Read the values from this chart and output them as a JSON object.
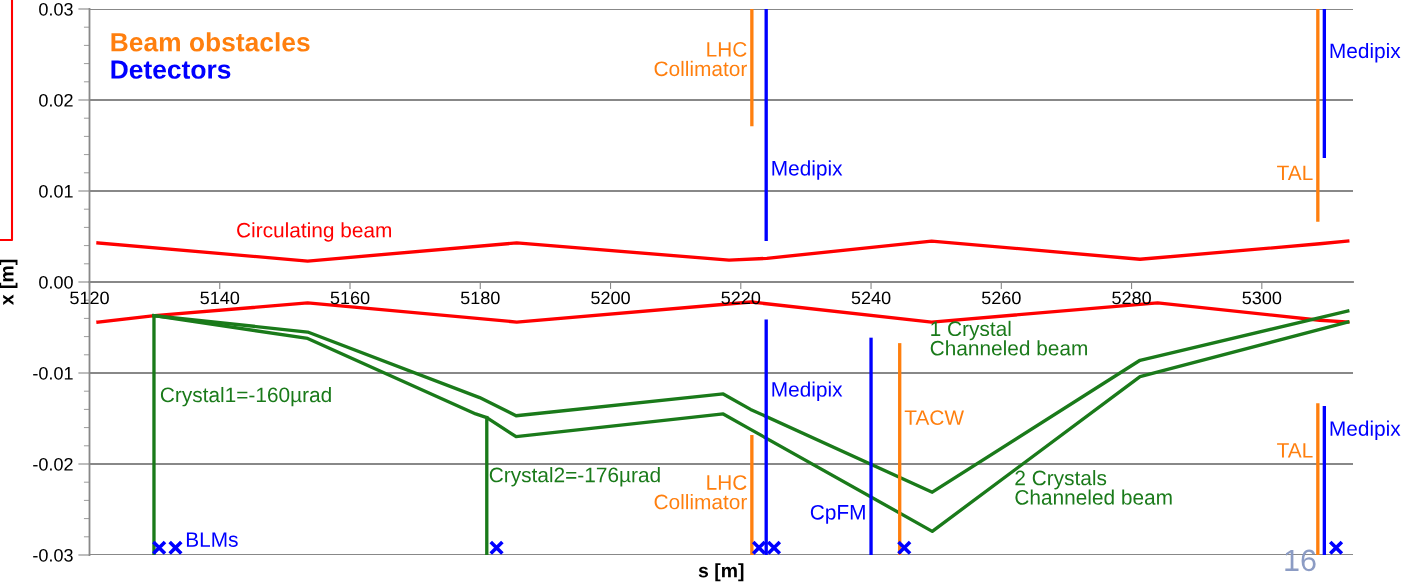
{
  "chart_data": {
    "type": "line",
    "xlabel": "s [m]",
    "ylabel": "x [m]",
    "xlim": [
      5120,
      5314
    ],
    "xticks": [
      5120,
      5140,
      5160,
      5180,
      5200,
      5220,
      5240,
      5260,
      5280,
      5300
    ],
    "ylim": [
      -0.03,
      0.03
    ],
    "yticks": [
      {
        "value": 0.03,
        "label": "0.03"
      },
      {
        "value": 0.02,
        "label": "0.02"
      },
      {
        "value": 0.01,
        "label": "0.01"
      },
      {
        "value": 0,
        "label": "0.00"
      },
      {
        "value": -0.01,
        "label": "-0.01"
      },
      {
        "value": -0.02,
        "label": "-0.02"
      },
      {
        "value": -0.03,
        "label": "-0.03"
      }
    ],
    "grid": "y",
    "line_style": "solid",
    "series": [
      {
        "name": "Circulating beam",
        "color": "#ff0000",
        "x": [
          5121.3,
          5153.5,
          5185.6,
          5218.2,
          5224,
          5249.3,
          5281.3,
          5308.9,
          5313.2
        ],
        "values": [
          0.0043,
          0.0023,
          0.0043,
          0.0024,
          0.0026,
          0.0045,
          0.0025,
          0.0042,
          0.0045
        ]
      },
      {
        "color": "#ff0000",
        "x": [
          5121.3,
          5130,
          5153.5,
          5185.6,
          5221.6,
          5249.3,
          5284,
          5308.9,
          5313.2
        ],
        "values": [
          -0.0044,
          -0.0037,
          -0.0023,
          -0.0044,
          -0.0022,
          -0.0044,
          -0.0023,
          -0.0042,
          -0.0044
        ]
      },
      {
        "name": "1 Crystal\nChanneled beam",
        "color": "#1a7a1a",
        "x": [
          5129.9,
          5153.5,
          5179.9,
          5185.5,
          5217.3,
          5221.5,
          5249.4,
          5281.3,
          5313.2
        ],
        "values": [
          -0.0037,
          -0.0055,
          -0.0127,
          -0.0147,
          -0.0123,
          -0.014,
          -0.0231,
          -0.0086,
          -0.0032
        ]
      },
      {
        "name": "2 Crystals\nChanneled beam",
        "color": "#1a7a1a",
        "x": [
          5129.9,
          5153.5,
          5179.3,
          5181,
          5185.5,
          5217.3,
          5221.5,
          5249.4,
          5281.3,
          5313.2
        ],
        "values": [
          -0.0037,
          -0.0062,
          -0.0145,
          -0.0149,
          -0.017,
          -0.0145,
          -0.0162,
          -0.0274,
          -0.0104,
          -0.0044
        ]
      },
      {
        "name": "Crystal1=-160µrad",
        "color": "#1a7a1a",
        "x": [
          5129.9,
          5129.9
        ],
        "values": [
          -0.0037,
          -0.03
        ]
      },
      {
        "name": "Crystal2=-176µrad",
        "color": "#1a7a1a",
        "x": [
          5181,
          5181
        ],
        "values": [
          -0.0149,
          -0.03
        ]
      },
      {
        "name": "LHC\nCollimator",
        "color": "#ff7f0e",
        "x": [
          5221.7,
          5221.7
        ],
        "values": [
          0.03,
          0.0173
        ]
      },
      {
        "name": "TAL",
        "color": "#ff7f0e",
        "x": [
          5308.6,
          5308.6
        ],
        "values": [
          0.03,
          0.0068
        ]
      },
      {
        "name": "LHC\nCollimator",
        "color": "#ff7f0e",
        "x": [
          5221.7,
          5221.7
        ],
        "values": [
          -0.017,
          -0.03
        ]
      },
      {
        "name": "TACW",
        "color": "#ff7f0e",
        "x": [
          5244.4,
          5244.4
        ],
        "values": [
          -0.0069,
          -0.03
        ]
      },
      {
        "name": "TAL",
        "color": "#ff7f0e",
        "x": [
          5308.6,
          5308.6
        ],
        "values": [
          -0.0135,
          -0.03
        ]
      },
      {
        "name": "Medipix",
        "color": "#0000ff",
        "x": [
          5223.9,
          5223.9
        ],
        "values": [
          0.03,
          0.0047
        ]
      },
      {
        "name": "Medipix",
        "color": "#0000ff",
        "x": [
          5309.6,
          5309.6
        ],
        "values": [
          0.03,
          0.0138
        ]
      },
      {
        "name": "Medipix",
        "color": "#0000ff",
        "x": [
          5223.9,
          5223.9
        ],
        "values": [
          -0.0043,
          -0.03
        ]
      },
      {
        "name": "CpFM",
        "color": "#0000ff",
        "x": [
          5240,
          5240
        ],
        "values": [
          -0.0063,
          -0.03
        ]
      },
      {
        "name": "Medipix",
        "color": "#0000ff",
        "x": [
          5309.6,
          5309.6
        ],
        "values": [
          -0.0138,
          -0.03
        ]
      },
      {
        "name": "BLMs",
        "type": "scatter",
        "marker": "cross",
        "color": "#0000ff",
        "x": [
          5130.7,
          5133.2,
          5182.5,
          5222.8,
          5225.1,
          5245.1,
          5311.4
        ],
        "values": [
          -0.0292,
          -0.0292,
          -0.0292,
          -0.0292,
          -0.0292,
          -0.0292,
          -0.0292
        ]
      }
    ],
    "annotations": [
      "Beam obstacles",
      "Detectors",
      "16"
    ]
  }
}
